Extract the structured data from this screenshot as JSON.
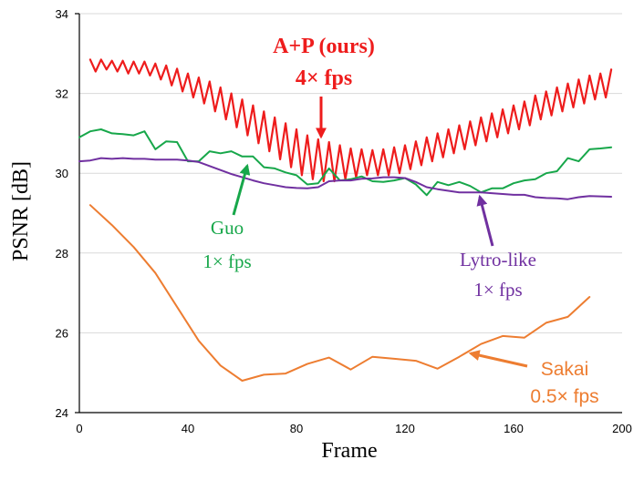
{
  "chart_data": {
    "type": "line",
    "title": "",
    "xlabel": "Frame",
    "ylabel": "PSNR [dB]",
    "xlim": [
      0,
      200
    ],
    "ylim": [
      24,
      34
    ],
    "xticks": [
      0,
      40,
      80,
      120,
      160,
      200
    ],
    "yticks": [
      24,
      26,
      28,
      30,
      32,
      34
    ],
    "grid": "horizontal",
    "series": [
      {
        "name": "A+P (ours)",
        "color": "#ee1c1c",
        "points": [
          [
            4,
            32.85
          ],
          [
            6,
            32.55
          ],
          [
            8,
            32.85
          ],
          [
            10,
            32.6
          ],
          [
            12,
            32.82
          ],
          [
            14,
            32.55
          ],
          [
            16,
            32.82
          ],
          [
            18,
            32.5
          ],
          [
            20,
            32.8
          ],
          [
            22,
            32.5
          ],
          [
            24,
            32.8
          ],
          [
            26,
            32.45
          ],
          [
            28,
            32.75
          ],
          [
            30,
            32.35
          ],
          [
            32,
            32.7
          ],
          [
            34,
            32.2
          ],
          [
            36,
            32.62
          ],
          [
            38,
            32.05
          ],
          [
            40,
            32.5
          ],
          [
            42,
            31.9
          ],
          [
            44,
            32.4
          ],
          [
            46,
            31.75
          ],
          [
            48,
            32.3
          ],
          [
            50,
            31.55
          ],
          [
            52,
            32.15
          ],
          [
            54,
            31.35
          ],
          [
            56,
            32.0
          ],
          [
            58,
            31.15
          ],
          [
            60,
            31.85
          ],
          [
            62,
            30.95
          ],
          [
            64,
            31.7
          ],
          [
            66,
            30.75
          ],
          [
            68,
            31.55
          ],
          [
            70,
            30.55
          ],
          [
            72,
            31.4
          ],
          [
            74,
            30.35
          ],
          [
            76,
            31.25
          ],
          [
            78,
            30.15
          ],
          [
            80,
            31.1
          ],
          [
            82,
            29.95
          ],
          [
            84,
            30.95
          ],
          [
            86,
            29.85
          ],
          [
            88,
            30.85
          ],
          [
            90,
            29.8
          ],
          [
            92,
            30.78
          ],
          [
            94,
            29.8
          ],
          [
            96,
            30.7
          ],
          [
            98,
            29.85
          ],
          [
            100,
            30.62
          ],
          [
            102,
            29.9
          ],
          [
            104,
            30.6
          ],
          [
            106,
            29.95
          ],
          [
            108,
            30.58
          ],
          [
            110,
            29.95
          ],
          [
            112,
            30.6
          ],
          [
            114,
            29.95
          ],
          [
            116,
            30.65
          ],
          [
            118,
            30.0
          ],
          [
            120,
            30.7
          ],
          [
            122,
            30.1
          ],
          [
            124,
            30.8
          ],
          [
            126,
            30.2
          ],
          [
            128,
            30.9
          ],
          [
            130,
            30.3
          ],
          [
            132,
            31.0
          ],
          [
            134,
            30.4
          ],
          [
            136,
            31.1
          ],
          [
            138,
            30.5
          ],
          [
            140,
            31.2
          ],
          [
            142,
            30.6
          ],
          [
            144,
            31.3
          ],
          [
            146,
            30.7
          ],
          [
            148,
            31.4
          ],
          [
            150,
            30.8
          ],
          [
            152,
            31.5
          ],
          [
            154,
            30.9
          ],
          [
            156,
            31.6
          ],
          [
            158,
            31.0
          ],
          [
            160,
            31.7
          ],
          [
            162,
            31.1
          ],
          [
            164,
            31.8
          ],
          [
            166,
            31.2
          ],
          [
            168,
            31.95
          ],
          [
            170,
            31.35
          ],
          [
            172,
            32.05
          ],
          [
            174,
            31.45
          ],
          [
            176,
            32.15
          ],
          [
            178,
            31.55
          ],
          [
            180,
            32.25
          ],
          [
            182,
            31.65
          ],
          [
            184,
            32.35
          ],
          [
            186,
            31.75
          ],
          [
            188,
            32.45
          ],
          [
            190,
            31.85
          ],
          [
            192,
            32.5
          ],
          [
            194,
            31.9
          ],
          [
            196,
            32.6
          ]
        ]
      },
      {
        "name": "Guo",
        "color": "#17a74a",
        "points": [
          [
            0,
            30.9
          ],
          [
            4,
            31.05
          ],
          [
            8,
            31.1
          ],
          [
            12,
            31.0
          ],
          [
            16,
            30.98
          ],
          [
            20,
            30.95
          ],
          [
            24,
            31.05
          ],
          [
            28,
            30.6
          ],
          [
            32,
            30.8
          ],
          [
            36,
            30.78
          ],
          [
            40,
            30.3
          ],
          [
            44,
            30.3
          ],
          [
            48,
            30.55
          ],
          [
            52,
            30.5
          ],
          [
            56,
            30.55
          ],
          [
            60,
            30.42
          ],
          [
            64,
            30.42
          ],
          [
            68,
            30.15
          ],
          [
            72,
            30.12
          ],
          [
            76,
            30.02
          ],
          [
            80,
            29.95
          ],
          [
            84,
            29.72
          ],
          [
            88,
            29.75
          ],
          [
            92,
            30.12
          ],
          [
            96,
            29.82
          ],
          [
            100,
            29.85
          ],
          [
            104,
            29.92
          ],
          [
            108,
            29.8
          ],
          [
            112,
            29.78
          ],
          [
            116,
            29.82
          ],
          [
            120,
            29.88
          ],
          [
            124,
            29.72
          ],
          [
            128,
            29.45
          ],
          [
            132,
            29.78
          ],
          [
            136,
            29.7
          ],
          [
            140,
            29.78
          ],
          [
            144,
            29.68
          ],
          [
            148,
            29.52
          ],
          [
            152,
            29.62
          ],
          [
            156,
            29.62
          ],
          [
            160,
            29.75
          ],
          [
            164,
            29.82
          ],
          [
            168,
            29.85
          ],
          [
            172,
            30.0
          ],
          [
            176,
            30.05
          ],
          [
            180,
            30.38
          ],
          [
            184,
            30.3
          ],
          [
            188,
            30.6
          ],
          [
            192,
            30.62
          ],
          [
            196,
            30.65
          ]
        ]
      },
      {
        "name": "Lytro-like",
        "color": "#7030a0",
        "points": [
          [
            0,
            30.3
          ],
          [
            4,
            30.32
          ],
          [
            8,
            30.38
          ],
          [
            12,
            30.36
          ],
          [
            16,
            30.38
          ],
          [
            20,
            30.36
          ],
          [
            24,
            30.36
          ],
          [
            28,
            30.34
          ],
          [
            32,
            30.34
          ],
          [
            36,
            30.34
          ],
          [
            40,
            30.32
          ],
          [
            44,
            30.28
          ],
          [
            48,
            30.18
          ],
          [
            52,
            30.08
          ],
          [
            56,
            29.98
          ],
          [
            60,
            29.9
          ],
          [
            64,
            29.82
          ],
          [
            68,
            29.75
          ],
          [
            72,
            29.7
          ],
          [
            76,
            29.65
          ],
          [
            80,
            29.63
          ],
          [
            84,
            29.62
          ],
          [
            88,
            29.65
          ],
          [
            92,
            29.8
          ],
          [
            96,
            29.82
          ],
          [
            100,
            29.82
          ],
          [
            104,
            29.86
          ],
          [
            108,
            29.87
          ],
          [
            112,
            29.9
          ],
          [
            116,
            29.9
          ],
          [
            120,
            29.88
          ],
          [
            124,
            29.78
          ],
          [
            128,
            29.65
          ],
          [
            132,
            29.6
          ],
          [
            136,
            29.56
          ],
          [
            140,
            29.52
          ],
          [
            144,
            29.52
          ],
          [
            148,
            29.52
          ],
          [
            152,
            29.5
          ],
          [
            156,
            29.48
          ],
          [
            160,
            29.46
          ],
          [
            164,
            29.46
          ],
          [
            168,
            29.4
          ],
          [
            172,
            29.38
          ],
          [
            176,
            29.37
          ],
          [
            180,
            29.35
          ],
          [
            184,
            29.4
          ],
          [
            188,
            29.43
          ],
          [
            192,
            29.42
          ],
          [
            196,
            29.41
          ]
        ]
      },
      {
        "name": "Sakai",
        "color": "#ed7d31",
        "points": [
          [
            4,
            29.2
          ],
          [
            12,
            28.7
          ],
          [
            20,
            28.15
          ],
          [
            28,
            27.5
          ],
          [
            36,
            26.65
          ],
          [
            44,
            25.8
          ],
          [
            52,
            25.18
          ],
          [
            60,
            24.8
          ],
          [
            68,
            24.95
          ],
          [
            76,
            24.98
          ],
          [
            84,
            25.22
          ],
          [
            92,
            25.38
          ],
          [
            100,
            25.08
          ],
          [
            108,
            25.4
          ],
          [
            116,
            25.35
          ],
          [
            124,
            25.3
          ],
          [
            132,
            25.1
          ],
          [
            140,
            25.4
          ],
          [
            148,
            25.72
          ],
          [
            156,
            25.92
          ],
          [
            164,
            25.88
          ],
          [
            172,
            26.25
          ],
          [
            180,
            26.4
          ],
          [
            188,
            26.9
          ]
        ]
      }
    ],
    "annotations": [
      {
        "series": "A+P (ours)",
        "lines": [
          "A+P (ours)",
          "4× fps"
        ],
        "color": "#ee1c1c"
      },
      {
        "series": "Guo",
        "lines": [
          "Guo",
          "1× fps"
        ],
        "color": "#17a74a"
      },
      {
        "series": "Lytro-like",
        "lines": [
          "Lytro-like",
          "1× fps"
        ],
        "color": "#7030a0"
      },
      {
        "series": "Sakai",
        "lines": [
          "Sakai",
          "0.5× fps"
        ],
        "color": "#ed7d31"
      }
    ]
  }
}
